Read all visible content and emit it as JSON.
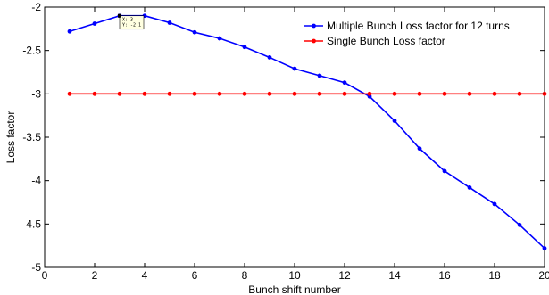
{
  "chart_data": {
    "type": "line",
    "title": "",
    "xlabel": "Bunch shift number",
    "ylabel": "Loss factor",
    "xlim": [
      0,
      20
    ],
    "ylim": [
      -5,
      -2
    ],
    "xticks": [
      0,
      2,
      4,
      6,
      8,
      10,
      12,
      14,
      16,
      18,
      20
    ],
    "yticks": [
      -5,
      -4.5,
      -4,
      -3.5,
      -3,
      -2.5,
      -2
    ],
    "grid": false,
    "legend_position": "top-right",
    "series": [
      {
        "name": "Multiple Bunch Loss factor for 12 turns",
        "color": "#0000ff",
        "marker": "dot",
        "x": [
          1,
          2,
          3,
          4,
          5,
          6,
          7,
          8,
          9,
          10,
          11,
          12,
          13,
          14,
          15,
          16,
          17,
          18,
          19,
          20
        ],
        "y": [
          -2.28,
          -2.19,
          -2.1,
          -2.1,
          -2.18,
          -2.29,
          -2.36,
          -2.46,
          -2.58,
          -2.71,
          -2.79,
          -2.87,
          -3.03,
          -3.31,
          -3.63,
          -3.89,
          -4.08,
          -4.27,
          -4.51,
          -4.78
        ]
      },
      {
        "name": "Single Bunch Loss factor",
        "color": "#ff0000",
        "marker": "dot",
        "x": [
          1,
          2,
          3,
          4,
          5,
          6,
          7,
          8,
          9,
          10,
          11,
          12,
          13,
          14,
          15,
          16,
          17,
          18,
          19,
          20
        ],
        "y": [
          -3,
          -3,
          -3,
          -3,
          -3,
          -3,
          -3,
          -3,
          -3,
          -3,
          -3,
          -3,
          -3,
          -3,
          -3,
          -3,
          -3,
          -3,
          -3,
          -3
        ]
      }
    ],
    "annotation": {
      "x_text": "X: 3",
      "y_text": "Y: -2.1",
      "anchor_x": 3,
      "anchor_y": -2.1,
      "background": "#ffffe1"
    }
  }
}
